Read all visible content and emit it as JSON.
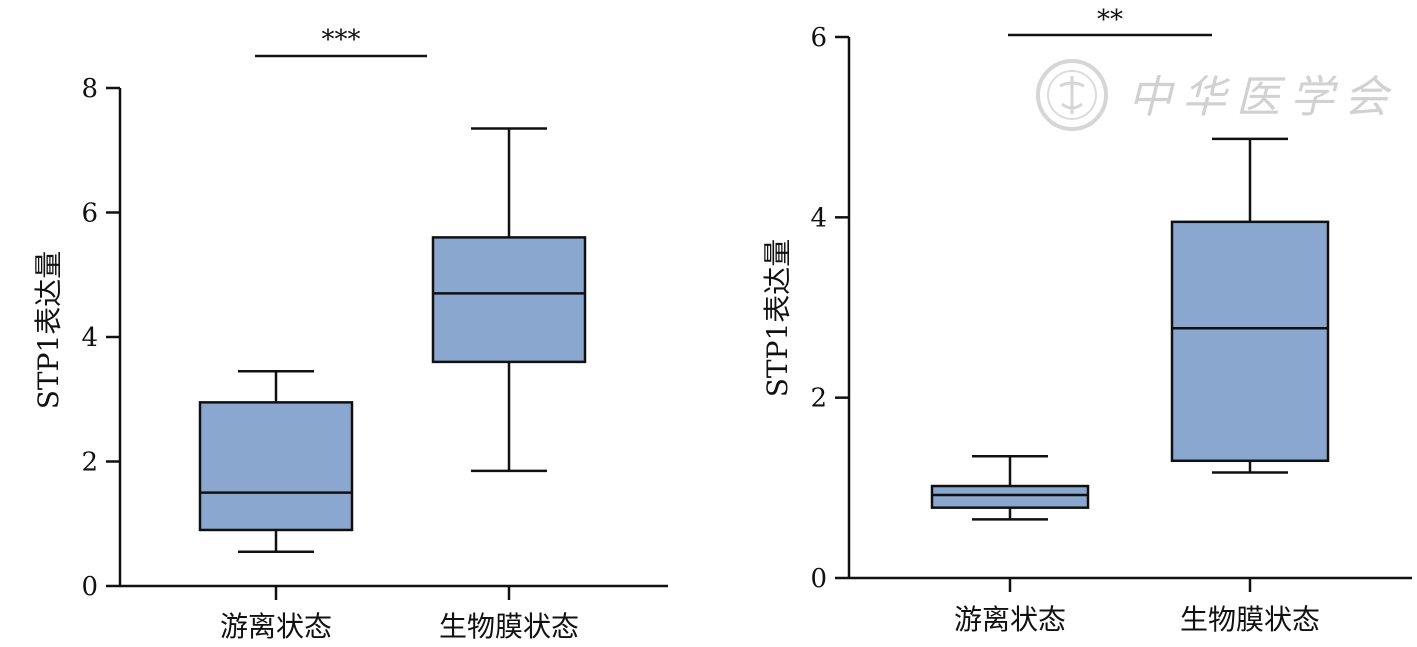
{
  "chart_data": [
    {
      "type": "box",
      "title": "",
      "ylabel": "STP1表达量",
      "xlabel": "",
      "ylim": [
        0,
        8
      ],
      "yticks": [
        0,
        2,
        4,
        6,
        8
      ],
      "categories": [
        "游离状态",
        "生物膜状态"
      ],
      "boxes": [
        {
          "category": "游离状态",
          "min": 0.55,
          "q1": 0.9,
          "median": 1.5,
          "q3": 2.95,
          "max": 3.45
        },
        {
          "category": "生物膜状态",
          "min": 1.85,
          "q1": 3.6,
          "median": 4.7,
          "q3": 5.6,
          "max": 7.35
        }
      ],
      "significance": {
        "label": "***",
        "from": 0,
        "to": 1
      },
      "grid": false,
      "box_color": "#8aa8cf"
    },
    {
      "type": "box",
      "title": "",
      "ylabel": "STP1表达量",
      "xlabel": "",
      "ylim": [
        0,
        6
      ],
      "yticks": [
        0,
        2,
        4,
        6
      ],
      "categories": [
        "游离状态",
        "生物膜状态"
      ],
      "boxes": [
        {
          "category": "游离状态",
          "min": 0.65,
          "q1": 0.78,
          "median": 0.92,
          "q3": 1.02,
          "max": 1.35
        },
        {
          "category": "生物膜状态",
          "min": 1.17,
          "q1": 1.3,
          "median": 2.77,
          "q3": 3.95,
          "max": 4.87
        }
      ],
      "significance": {
        "label": "**",
        "from": 0,
        "to": 1
      },
      "grid": false,
      "box_color": "#8aa8cf"
    }
  ],
  "watermark": {
    "text": "中华医学会",
    "icon": "society-seal-icon"
  }
}
